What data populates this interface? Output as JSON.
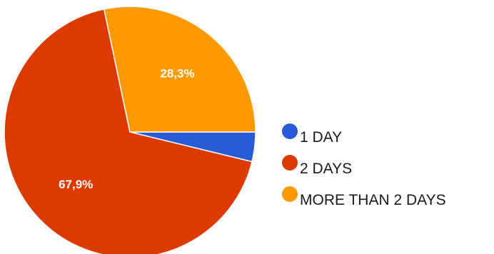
{
  "chart_data": {
    "type": "pie",
    "categories": [
      "1 DAY",
      "2 DAYS",
      "MORE THAN 2 DAYS"
    ],
    "values": [
      3.8,
      67.9,
      28.3
    ],
    "data_labels": [
      "",
      "67,9%",
      "28,3%"
    ],
    "colors": [
      "#2a5bd7",
      "#dc3a00",
      "#ff9900"
    ],
    "start_angle_deg": 0,
    "direction": "clockwise",
    "legend": "right"
  }
}
